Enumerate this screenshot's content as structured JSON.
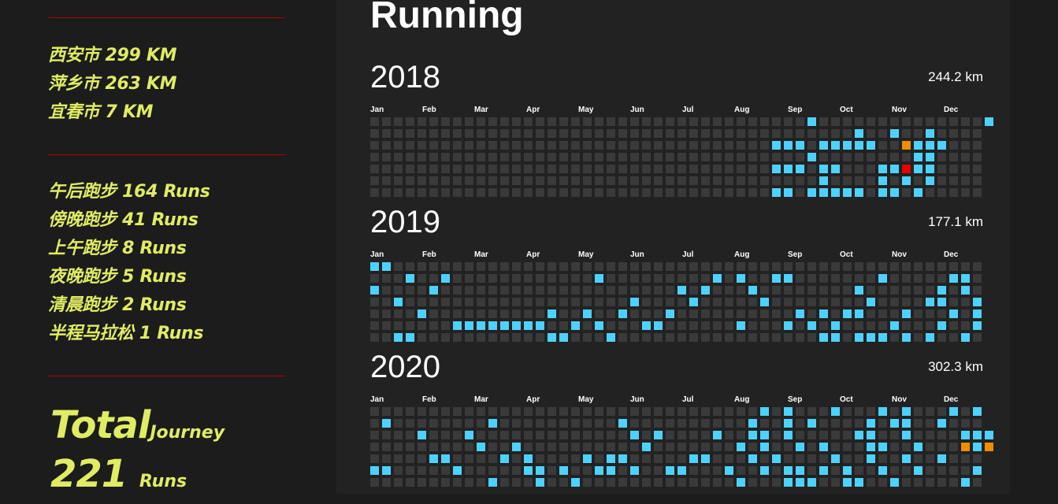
{
  "sidebar": {
    "cities": [
      {
        "label": "西安市 299 KM"
      },
      {
        "label": "萍乡市 263 KM"
      },
      {
        "label": "宜春市 7 KM"
      }
    ],
    "run_types": [
      {
        "label": "午后跑步 164 Runs"
      },
      {
        "label": "傍晚跑步 41 Runs"
      },
      {
        "label": "上午跑步 8 Runs"
      },
      {
        "label": "夜晚跑步 5 Runs"
      },
      {
        "label": "清晨跑步 2 Runs"
      },
      {
        "label": "半程马拉松 1 Runs"
      }
    ],
    "total_word": "Total",
    "journey_word": "Journey",
    "runs_count": "221",
    "runs_word": "Runs"
  },
  "main": {
    "title": "Running",
    "months": [
      "Jan",
      "Feb",
      "Mar",
      "Apr",
      "May",
      "Jun",
      "Jul",
      "Aug",
      "Sep",
      "Oct",
      "Nov",
      "Dec"
    ],
    "colors": {
      "empty": "#3a3a3a",
      "run": "#4dd2ff",
      "long": "#f28c00",
      "longest": "#e60000"
    },
    "years": [
      {
        "year": "2018",
        "total": "244.2 km",
        "cells": {
          "run": [
            [
              37,
              0
            ],
            [
              52,
              0
            ],
            [
              41,
              1
            ],
            [
              44,
              1
            ],
            [
              47,
              1
            ],
            [
              34,
              2
            ],
            [
              35,
              2
            ],
            [
              36,
              2
            ],
            [
              38,
              2
            ],
            [
              39,
              2
            ],
            [
              40,
              2
            ],
            [
              41,
              2
            ],
            [
              42,
              2
            ],
            [
              45,
              2
            ],
            [
              46,
              2
            ],
            [
              47,
              2
            ],
            [
              48,
              2
            ],
            [
              37,
              3
            ],
            [
              46,
              3
            ],
            [
              47,
              3
            ],
            [
              34,
              4
            ],
            [
              35,
              4
            ],
            [
              36,
              4
            ],
            [
              38,
              4
            ],
            [
              39,
              4
            ],
            [
              43,
              4
            ],
            [
              44,
              4
            ],
            [
              46,
              4
            ],
            [
              47,
              4
            ],
            [
              38,
              5
            ],
            [
              43,
              5
            ],
            [
              45,
              5
            ],
            [
              47,
              5
            ],
            [
              34,
              6
            ],
            [
              35,
              6
            ],
            [
              37,
              6
            ],
            [
              38,
              6
            ],
            [
              39,
              6
            ],
            [
              40,
              6
            ],
            [
              41,
              6
            ],
            [
              43,
              6
            ],
            [
              44,
              6
            ],
            [
              46,
              6
            ]
          ],
          "long": [
            [
              45,
              2
            ]
          ],
          "longest": [
            [
              45,
              4
            ]
          ]
        }
      },
      {
        "year": "2019",
        "total": "177.1 km",
        "cells": {
          "run": [
            [
              0,
              0
            ],
            [
              1,
              0
            ],
            [
              3,
              1
            ],
            [
              6,
              1
            ],
            [
              19,
              1
            ],
            [
              29,
              1
            ],
            [
              31,
              1
            ],
            [
              34,
              1
            ],
            [
              35,
              1
            ],
            [
              43,
              1
            ],
            [
              49,
              1
            ],
            [
              50,
              1
            ],
            [
              0,
              2
            ],
            [
              5,
              2
            ],
            [
              26,
              2
            ],
            [
              28,
              2
            ],
            [
              32,
              2
            ],
            [
              41,
              2
            ],
            [
              48,
              2
            ],
            [
              50,
              2
            ],
            [
              2,
              3
            ],
            [
              22,
              3
            ],
            [
              27,
              3
            ],
            [
              33,
              3
            ],
            [
              42,
              3
            ],
            [
              47,
              3
            ],
            [
              48,
              3
            ],
            [
              51,
              3
            ],
            [
              4,
              4
            ],
            [
              15,
              4
            ],
            [
              18,
              4
            ],
            [
              21,
              4
            ],
            [
              25,
              4
            ],
            [
              36,
              4
            ],
            [
              38,
              4
            ],
            [
              40,
              4
            ],
            [
              41,
              4
            ],
            [
              45,
              4
            ],
            [
              49,
              4
            ],
            [
              51,
              4
            ],
            [
              7,
              5
            ],
            [
              8,
              5
            ],
            [
              9,
              5
            ],
            [
              10,
              5
            ],
            [
              11,
              5
            ],
            [
              12,
              5
            ],
            [
              13,
              5
            ],
            [
              14,
              5
            ],
            [
              17,
              5
            ],
            [
              19,
              5
            ],
            [
              23,
              5
            ],
            [
              24,
              5
            ],
            [
              31,
              5
            ],
            [
              35,
              5
            ],
            [
              37,
              5
            ],
            [
              39,
              5
            ],
            [
              44,
              5
            ],
            [
              48,
              5
            ],
            [
              51,
              5
            ],
            [
              2,
              6
            ],
            [
              3,
              6
            ],
            [
              15,
              6
            ],
            [
              16,
              6
            ],
            [
              20,
              6
            ],
            [
              38,
              6
            ],
            [
              39,
              6
            ],
            [
              41,
              6
            ],
            [
              42,
              6
            ],
            [
              43,
              6
            ],
            [
              45,
              6
            ],
            [
              47,
              6
            ],
            [
              50,
              6
            ]
          ],
          "long": [],
          "longest": []
        }
      },
      {
        "year": "2020",
        "total": "302.3 km",
        "cells": {
          "run": [
            [
              33,
              0
            ],
            [
              35,
              0
            ],
            [
              39,
              0
            ],
            [
              43,
              0
            ],
            [
              45,
              0
            ],
            [
              49,
              0
            ],
            [
              51,
              0
            ],
            [
              1,
              1
            ],
            [
              10,
              1
            ],
            [
              21,
              1
            ],
            [
              32,
              1
            ],
            [
              35,
              1
            ],
            [
              37,
              1
            ],
            [
              42,
              1
            ],
            [
              44,
              1
            ],
            [
              45,
              1
            ],
            [
              48,
              1
            ],
            [
              4,
              2
            ],
            [
              8,
              2
            ],
            [
              22,
              2
            ],
            [
              24,
              2
            ],
            [
              29,
              2
            ],
            [
              32,
              2
            ],
            [
              33,
              2
            ],
            [
              35,
              2
            ],
            [
              41,
              2
            ],
            [
              42,
              2
            ],
            [
              45,
              2
            ],
            [
              50,
              2
            ],
            [
              51,
              2
            ],
            [
              52,
              2
            ],
            [
              9,
              3
            ],
            [
              12,
              3
            ],
            [
              23,
              3
            ],
            [
              31,
              3
            ],
            [
              33,
              3
            ],
            [
              36,
              3
            ],
            [
              38,
              3
            ],
            [
              42,
              3
            ],
            [
              43,
              3
            ],
            [
              46,
              3
            ],
            [
              51,
              3
            ],
            [
              5,
              4
            ],
            [
              6,
              4
            ],
            [
              11,
              4
            ],
            [
              13,
              4
            ],
            [
              18,
              4
            ],
            [
              20,
              4
            ],
            [
              21,
              4
            ],
            [
              27,
              4
            ],
            [
              28,
              4
            ],
            [
              32,
              4
            ],
            [
              34,
              4
            ],
            [
              39,
              4
            ],
            [
              42,
              4
            ],
            [
              45,
              4
            ],
            [
              48,
              4
            ],
            [
              0,
              5
            ],
            [
              1,
              5
            ],
            [
              7,
              5
            ],
            [
              13,
              5
            ],
            [
              14,
              5
            ],
            [
              16,
              5
            ],
            [
              19,
              5
            ],
            [
              20,
              5
            ],
            [
              22,
              5
            ],
            [
              25,
              5
            ],
            [
              26,
              5
            ],
            [
              30,
              5
            ],
            [
              33,
              5
            ],
            [
              35,
              5
            ],
            [
              36,
              5
            ],
            [
              38,
              5
            ],
            [
              40,
              5
            ],
            [
              43,
              5
            ],
            [
              46,
              5
            ],
            [
              51,
              5
            ],
            [
              10,
              6
            ],
            [
              14,
              6
            ],
            [
              17,
              6
            ],
            [
              31,
              6
            ],
            [
              35,
              6
            ],
            [
              36,
              6
            ],
            [
              37,
              6
            ],
            [
              40,
              6
            ],
            [
              41,
              6
            ],
            [
              44,
              6
            ],
            [
              50,
              6
            ]
          ],
          "long": [
            [
              50,
              3
            ],
            [
              52,
              3
            ]
          ],
          "longest": []
        }
      }
    ]
  }
}
